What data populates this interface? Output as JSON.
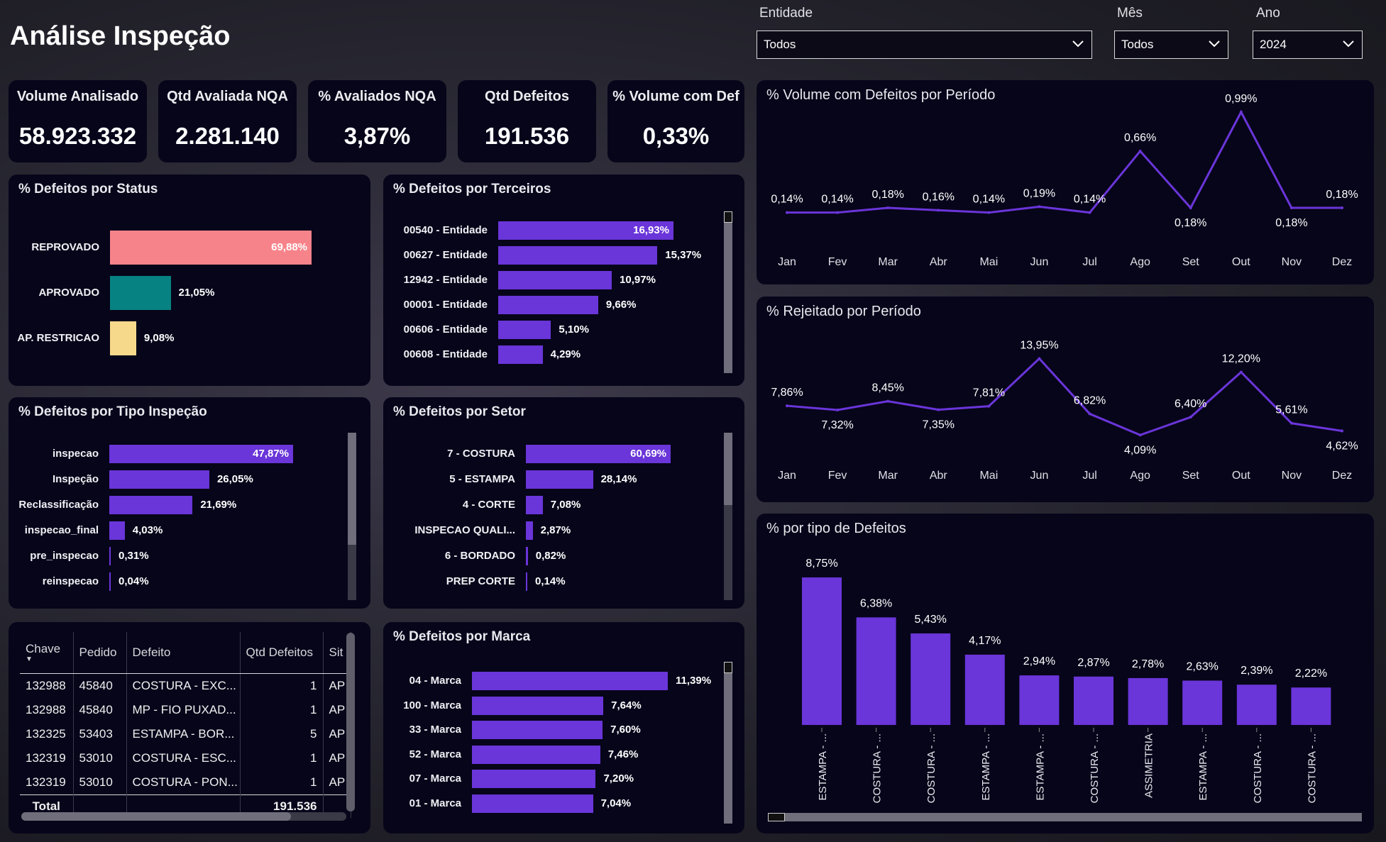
{
  "page_title": "Análise Inspeção",
  "filters": {
    "entidade": {
      "label": "Entidade",
      "value": "Todos"
    },
    "mes": {
      "label": "Mês",
      "value": "Todos"
    },
    "ano": {
      "label": "Ano",
      "value": "2024"
    }
  },
  "kpis": [
    {
      "label": "Volume Analisado",
      "value": "58.923.332"
    },
    {
      "label": "Qtd Avaliada NQA",
      "value": "2.281.140"
    },
    {
      "label": "% Avaliados NQA",
      "value": "3,87%"
    },
    {
      "label": "Qtd Defeitos",
      "value": "191.536"
    },
    {
      "label": "% Volume com Def",
      "value": "0,33%"
    }
  ],
  "colors": {
    "purple": "#6a35d9",
    "reprovado": "#f7838a",
    "aprovado": "#078282",
    "restricao": "#f7d98b",
    "card": "#07051a"
  },
  "chart_data": [
    {
      "id": "status",
      "type": "bar",
      "orientation": "horizontal",
      "title": "% Defeitos por Status",
      "categories": [
        "REPROVADO",
        "APROVADO",
        "AP. RESTRICAO"
      ],
      "values": [
        69.88,
        21.05,
        9.08
      ],
      "labels": [
        "69,88%",
        "21,05%",
        "9,08%"
      ]
    },
    {
      "id": "terceiros",
      "type": "bar",
      "orientation": "horizontal",
      "title": "% Defeitos por Terceiros",
      "categories": [
        "00540 - Entidade",
        "00627 - Entidade",
        "12942 - Entidade",
        "00001 - Entidade",
        "00606 - Entidade",
        "00608 - Entidade"
      ],
      "values": [
        16.93,
        15.37,
        10.97,
        9.66,
        5.1,
        4.29
      ],
      "labels": [
        "16,93%",
        "15,37%",
        "10,97%",
        "9,66%",
        "5,10%",
        "4,29%"
      ]
    },
    {
      "id": "tipo_inspecao",
      "type": "bar",
      "orientation": "horizontal",
      "title": "% Defeitos por Tipo Inspeção",
      "categories": [
        "inspecao",
        "Inspeção",
        "Reclassificação",
        "inspecao_final",
        "pre_inspecao",
        "reinspecao"
      ],
      "values": [
        47.87,
        26.05,
        21.69,
        4.03,
        0.31,
        0.04
      ],
      "labels": [
        "47,87%",
        "26,05%",
        "21,69%",
        "4,03%",
        "0,31%",
        "0,04%"
      ]
    },
    {
      "id": "setor",
      "type": "bar",
      "orientation": "horizontal",
      "title": "% Defeitos por Setor",
      "categories": [
        "7 - COSTURA",
        "5 - ESTAMPA",
        "4 - CORTE",
        "INSPECAO QUALI...",
        "6 - BORDADO",
        "PREP CORTE"
      ],
      "values": [
        60.69,
        28.14,
        7.08,
        2.87,
        0.82,
        0.14
      ],
      "labels": [
        "60,69%",
        "28,14%",
        "7,08%",
        "2,87%",
        "0,82%",
        "0,14%"
      ]
    },
    {
      "id": "marca",
      "type": "bar",
      "orientation": "horizontal",
      "title": "% Defeitos por Marca",
      "categories": [
        "04 - Marca",
        "100 - Marca",
        "33 - Marca",
        "52 - Marca",
        "07 - Marca",
        "01 - Marca"
      ],
      "values": [
        11.39,
        7.64,
        7.6,
        7.46,
        7.2,
        7.04
      ],
      "labels": [
        "11,39%",
        "7,64%",
        "7,60%",
        "7,46%",
        "7,20%",
        "7,04%"
      ]
    },
    {
      "id": "volume_periodo",
      "type": "line",
      "title": "% Volume com Defeitos por Período",
      "x": [
        "Jan",
        "Fev",
        "Mar",
        "Abr",
        "Mai",
        "Jun",
        "Jul",
        "Ago",
        "Set",
        "Out",
        "Nov",
        "Dez"
      ],
      "values": [
        0.14,
        0.14,
        0.18,
        0.16,
        0.14,
        0.19,
        0.14,
        0.66,
        0.18,
        0.99,
        0.18,
        0.18
      ],
      "labels": [
        "0,14%",
        "0,14%",
        "0,18%",
        "0,16%",
        "0,14%",
        "0,19%",
        "0,14%",
        "0,66%",
        "0,18%",
        "0,99%",
        "0,18%",
        "0,18%"
      ],
      "label_pos": [
        "above",
        "above",
        "above",
        "above",
        "above",
        "above",
        "above",
        "above",
        "below",
        "above",
        "below",
        "above"
      ],
      "ylim": [
        0.0,
        1.05
      ]
    },
    {
      "id": "rejeitado_periodo",
      "type": "line",
      "title": "% Rejeitado por Período",
      "x": [
        "Jan",
        "Fev",
        "Mar",
        "Abr",
        "Mai",
        "Jun",
        "Jul",
        "Ago",
        "Set",
        "Out",
        "Nov",
        "Dez"
      ],
      "values": [
        7.86,
        7.32,
        8.45,
        7.35,
        7.81,
        13.95,
        6.82,
        4.09,
        6.4,
        12.2,
        5.61,
        4.62
      ],
      "labels": [
        "7,86%",
        "7,32%",
        "8,45%",
        "7,35%",
        "7,81%",
        "13,95%",
        "6,82%",
        "4,09%",
        "6,40%",
        "12,20%",
        "5,61%",
        "4,62%"
      ],
      "label_pos": [
        "above",
        "below",
        "above",
        "below",
        "above",
        "above",
        "above",
        "below",
        "above",
        "above",
        "above",
        "below"
      ],
      "ylim": [
        0,
        15
      ]
    },
    {
      "id": "tipo_defeitos",
      "type": "bar",
      "orientation": "vertical",
      "title": "% por tipo de Defeitos",
      "categories": [
        "ESTAMPA - ...",
        "COSTURA - ...",
        "COSTURA - ...",
        "ESTAMPA - ...",
        "ESTAMPA - ...",
        "COSTURA - ...",
        "ASSIMETRIA",
        "ESTAMPA - ...",
        "COSTURA - ...",
        "COSTURA - ..."
      ],
      "values": [
        8.75,
        6.38,
        5.43,
        4.17,
        2.94,
        2.87,
        2.78,
        2.63,
        2.39,
        2.22
      ],
      "labels": [
        "8,75%",
        "6,38%",
        "5,43%",
        "4,17%",
        "2,94%",
        "2,87%",
        "2,78%",
        "2,63%",
        "2,39%",
        "2,22%"
      ],
      "ylim": [
        0,
        9
      ]
    }
  ],
  "table": {
    "columns": [
      "Chave",
      "Pedido",
      "Defeito",
      "Qtd Defeitos",
      "Sit"
    ],
    "rows": [
      [
        "132988",
        "45840",
        "COSTURA - EXC...",
        "1",
        "AP"
      ],
      [
        "132988",
        "45840",
        "MP - FIO PUXAD...",
        "1",
        "AP"
      ],
      [
        "132325",
        "53403",
        "ESTAMPA - BOR...",
        "5",
        "AP"
      ],
      [
        "132319",
        "53010",
        "COSTURA - ESC...",
        "1",
        "AP"
      ],
      [
        "132319",
        "53010",
        "COSTURA - PON...",
        "1",
        "AP"
      ]
    ],
    "total_label": "Total",
    "total_value": "191.536"
  }
}
